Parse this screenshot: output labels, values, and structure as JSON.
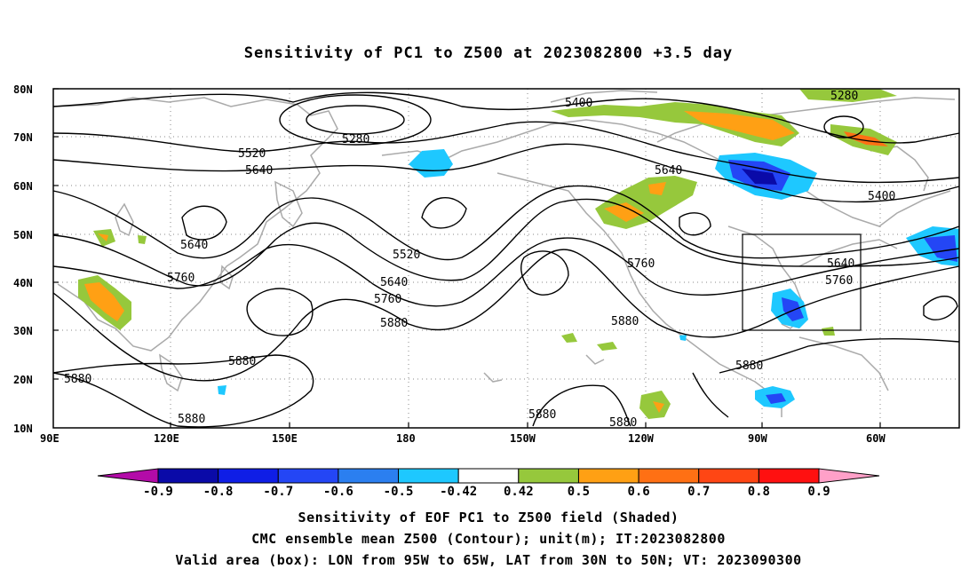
{
  "title": "Sensitivity of PC1 to Z500 at 2023082800 +3.5 day",
  "lat_labels": [
    "80N",
    "70N",
    "60N",
    "50N",
    "40N",
    "30N",
    "20N",
    "10N"
  ],
  "lon_labels": [
    "90E",
    "120E",
    "150E",
    "180",
    "150W",
    "120W",
    "90W",
    "60W"
  ],
  "contour_labels": [
    {
      "text": "5400",
      "id": "c1"
    },
    {
      "text": "5280",
      "id": "c2"
    },
    {
      "text": "5280",
      "id": "c3"
    },
    {
      "text": "5520",
      "id": "c4"
    },
    {
      "text": "5640",
      "id": "c5"
    },
    {
      "text": "5640",
      "id": "c6"
    },
    {
      "text": "5400",
      "id": "c7"
    },
    {
      "text": "5640",
      "id": "c8"
    },
    {
      "text": "5520",
      "id": "c9"
    },
    {
      "text": "5760",
      "id": "c10"
    },
    {
      "text": "5640",
      "id": "c11"
    },
    {
      "text": "5760",
      "id": "c12"
    },
    {
      "text": "5880",
      "id": "c13"
    },
    {
      "text": "5760",
      "id": "c14"
    },
    {
      "text": "5640",
      "id": "c15"
    },
    {
      "text": "5760",
      "id": "c16"
    },
    {
      "text": "5880",
      "id": "c17"
    },
    {
      "text": "5880",
      "id": "c18"
    },
    {
      "text": "5880",
      "id": "c19"
    },
    {
      "text": "5880",
      "id": "c20"
    },
    {
      "text": "5880",
      "id": "c21"
    },
    {
      "text": "5880",
      "id": "c22"
    },
    {
      "text": "5880",
      "id": "c23"
    }
  ],
  "colorbar": {
    "colors": [
      "#b30ba8",
      "#0a0aa8",
      "#0f1ee6",
      "#2446f5",
      "#2b7ff0",
      "#1ec8ff",
      "#ffffff",
      "#96c83c",
      "#ffa014",
      "#ff7014",
      "#ff4614",
      "#ff1010",
      "#ffa0c8"
    ],
    "labels": [
      "-0.9",
      "-0.8",
      "-0.7",
      "-0.6",
      "-0.5",
      "-0.42",
      "0.42",
      "0.5",
      "0.6",
      "0.7",
      "0.8",
      "0.9"
    ]
  },
  "footer": {
    "line1": "Sensitivity of EOF PC1 to Z500 field (Shaded)",
    "line2": "CMC ensemble mean Z500 (Contour); unit(m); IT:2023082800",
    "line3": "Valid area (box): LON from 95W to 65W, LAT from 30N to 50N; VT: 2023090300"
  }
}
